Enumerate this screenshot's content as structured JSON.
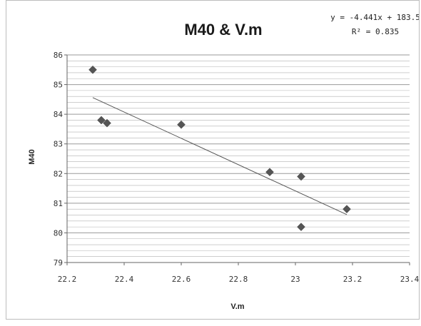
{
  "chart_data": {
    "type": "scatter",
    "title": "M40 & V.m",
    "xlabel": "V.m",
    "ylabel": "M40",
    "xlim": [
      22.2,
      23.4
    ],
    "ylim": [
      79,
      86
    ],
    "x_ticks": [
      "22.2",
      "22.4",
      "22.6",
      "22.8",
      "23",
      "23.2",
      "23.4"
    ],
    "y_ticks": [
      "79",
      "80",
      "81",
      "82",
      "83",
      "84",
      "85",
      "86"
    ],
    "grid": "horizontal",
    "points": [
      {
        "x": 22.29,
        "y": 85.5
      },
      {
        "x": 22.32,
        "y": 83.8
      },
      {
        "x": 22.34,
        "y": 83.7
      },
      {
        "x": 22.6,
        "y": 83.65
      },
      {
        "x": 22.91,
        "y": 82.05
      },
      {
        "x": 23.02,
        "y": 81.9
      },
      {
        "x": 23.02,
        "y": 80.2
      },
      {
        "x": 23.18,
        "y": 80.8
      }
    ],
    "trendline": {
      "type": "linear",
      "x_range": [
        22.29,
        23.18
      ],
      "equation": "y = -4.441x + 183.5",
      "r_squared": "R² = 0.835"
    },
    "colors": {
      "marker": "#555555",
      "line": "#555555",
      "grid": "#b0b0b0"
    }
  }
}
